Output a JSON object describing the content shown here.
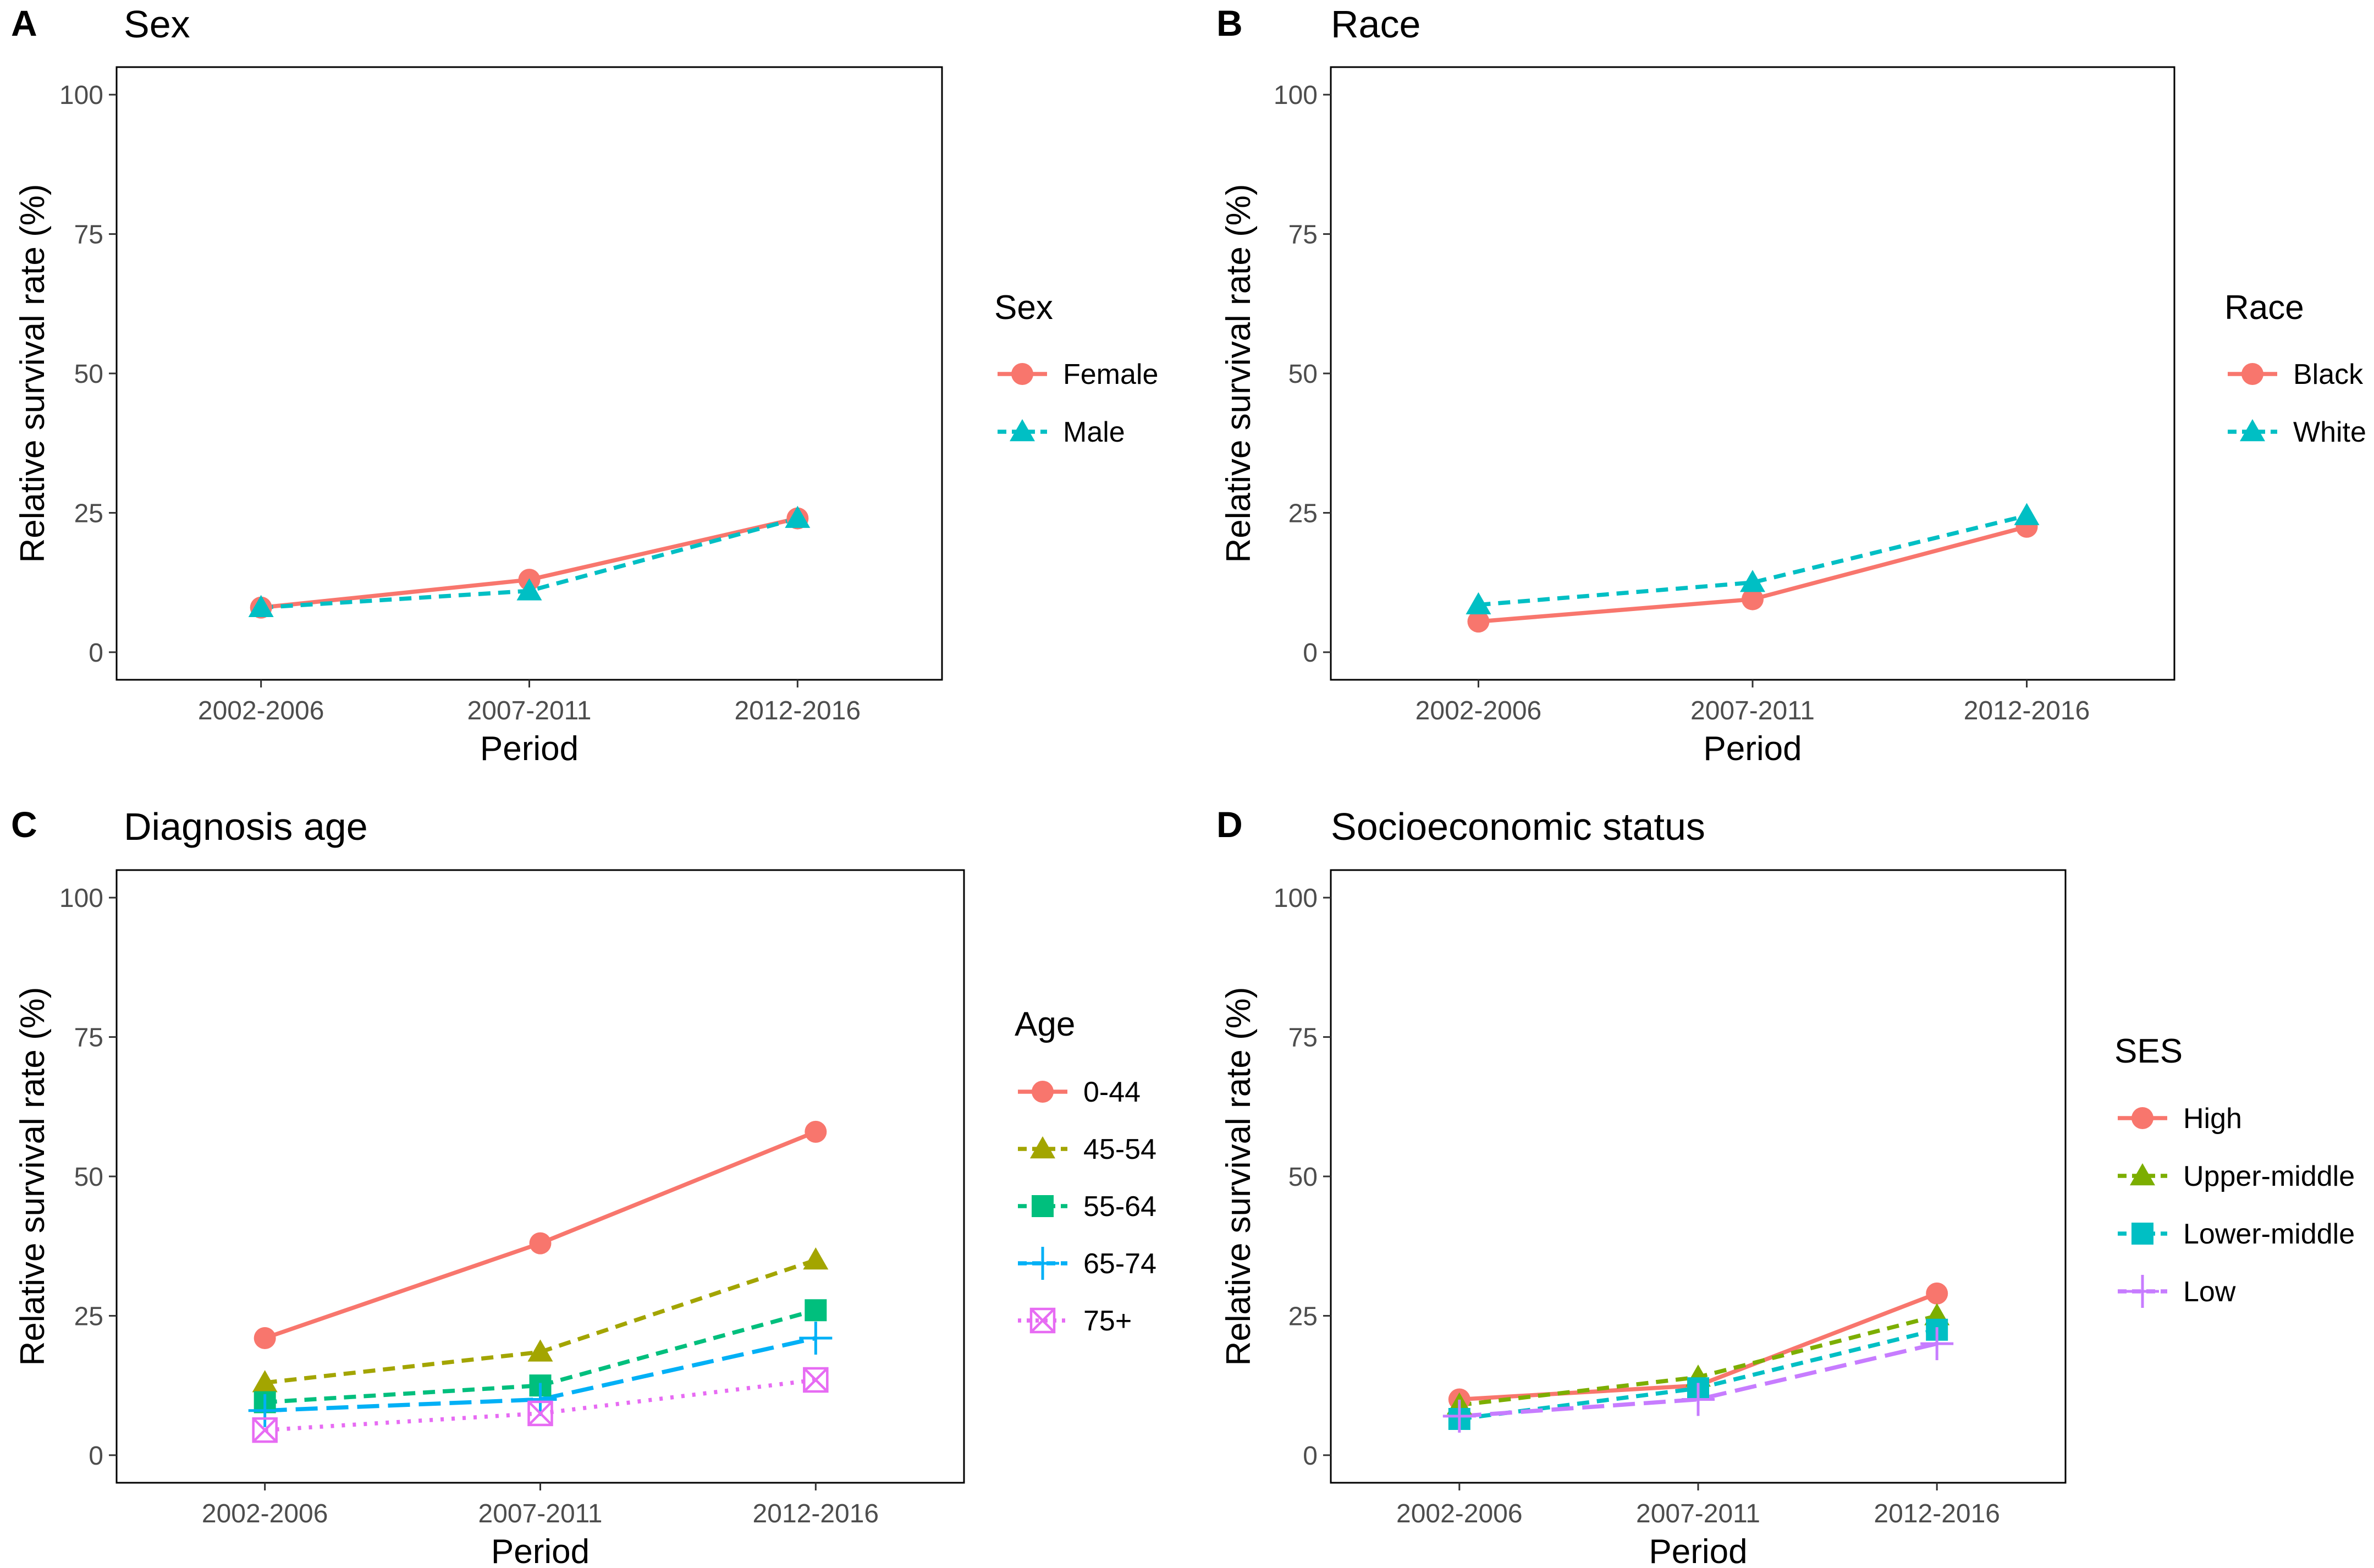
{
  "figure": {
    "colors": {
      "red": "#F8766D",
      "teal": "#00BFC4",
      "olive": "#A3A500",
      "green": "#00BF7D",
      "blue": "#00B0F6",
      "pink": "#E76BF3",
      "purple": "#C77CFF"
    }
  },
  "chart_data": [
    {
      "panel_label": "A",
      "type": "line",
      "title": "Sex",
      "xlabel": "Period",
      "ylabel": "Relative survival rate (%)",
      "categories": [
        "2002-2006",
        "2007-2011",
        "2012-2016"
      ],
      "ylim": [
        0,
        100
      ],
      "yticks": [
        "0",
        "25",
        "50",
        "75",
        "100"
      ],
      "legend": {
        "title": "Sex",
        "position": "right",
        "items": [
          {
            "name": "Female",
            "shape": "circle",
            "line": "solid",
            "color": "#F8766D"
          },
          {
            "name": "Male",
            "shape": "triangle",
            "line": "dashed",
            "color": "#00BFC4"
          }
        ]
      },
      "series": [
        {
          "name": "Female",
          "values": [
            8,
            13,
            24
          ],
          "shape": "circle",
          "line": "solid",
          "color": "#F8766D"
        },
        {
          "name": "Male",
          "values": [
            8,
            11,
            24
          ],
          "shape": "triangle",
          "line": "dashed",
          "color": "#00BFC4"
        }
      ]
    },
    {
      "panel_label": "B",
      "type": "line",
      "title": "Race",
      "xlabel": "Period",
      "ylabel": "Relative survival rate (%)",
      "categories": [
        "2002-2006",
        "2007-2011",
        "2012-2016"
      ],
      "ylim": [
        0,
        100
      ],
      "yticks": [
        "0",
        "25",
        "50",
        "75",
        "100"
      ],
      "legend": {
        "title": "Race",
        "position": "right",
        "items": [
          {
            "name": "Black",
            "shape": "circle",
            "line": "solid",
            "color": "#F8766D"
          },
          {
            "name": "White",
            "shape": "triangle",
            "line": "dashed",
            "color": "#00BFC4"
          }
        ]
      },
      "series": [
        {
          "name": "Black",
          "values": [
            5.5,
            9.5,
            22.5
          ],
          "shape": "circle",
          "line": "solid",
          "color": "#F8766D"
        },
        {
          "name": "White",
          "values": [
            8.5,
            12.5,
            24.5
          ],
          "shape": "triangle",
          "line": "dashed",
          "color": "#00BFC4"
        }
      ]
    },
    {
      "panel_label": "C",
      "type": "line",
      "title": "Diagnosis age",
      "xlabel": "Period",
      "ylabel": "Relative survival rate (%)",
      "categories": [
        "2002-2006",
        "2007-2011",
        "2012-2016"
      ],
      "ylim": [
        0,
        100
      ],
      "yticks": [
        "0",
        "25",
        "50",
        "75",
        "100"
      ],
      "legend": {
        "title": "Age",
        "position": "right",
        "items": [
          {
            "name": "0-44",
            "shape": "circle",
            "line": "solid",
            "color": "#F8766D"
          },
          {
            "name": "45-54",
            "shape": "triangle",
            "line": "dashed",
            "color": "#A3A500"
          },
          {
            "name": "55-64",
            "shape": "square",
            "line": "dashed",
            "color": "#00BF7D"
          },
          {
            "name": "65-74",
            "shape": "plus",
            "line": "longdash",
            "color": "#00B0F6"
          },
          {
            "name": "75+",
            "shape": "boxx",
            "line": "dotted",
            "color": "#E76BF3"
          }
        ]
      },
      "series": [
        {
          "name": "0-44",
          "values": [
            21,
            38,
            58
          ],
          "shape": "circle",
          "line": "solid",
          "color": "#F8766D"
        },
        {
          "name": "45-54",
          "values": [
            13,
            18.5,
            35
          ],
          "shape": "triangle",
          "line": "dashed",
          "color": "#A3A500"
        },
        {
          "name": "55-64",
          "values": [
            9.5,
            12.5,
            26
          ],
          "shape": "square",
          "line": "dashed",
          "color": "#00BF7D"
        },
        {
          "name": "65-74",
          "values": [
            8,
            10,
            21
          ],
          "shape": "plus",
          "line": "longdash",
          "color": "#00B0F6"
        },
        {
          "name": "75+",
          "values": [
            4.5,
            7.5,
            13.5
          ],
          "shape": "boxx",
          "line": "dotted",
          "color": "#E76BF3"
        }
      ]
    },
    {
      "panel_label": "D",
      "type": "line",
      "title": "Socioeconomic status",
      "xlabel": "Period",
      "ylabel": "Relative survival rate (%)",
      "categories": [
        "2002-2006",
        "2007-2011",
        "2012-2016"
      ],
      "ylim": [
        0,
        100
      ],
      "yticks": [
        "0",
        "25",
        "50",
        "75",
        "100"
      ],
      "legend": {
        "title": "SES",
        "position": "right",
        "items": [
          {
            "name": "High",
            "shape": "circle",
            "line": "solid",
            "color": "#F8766D"
          },
          {
            "name": "Upper-middle",
            "shape": "triangle",
            "line": "dashed",
            "color": "#7CAE00"
          },
          {
            "name": "Lower-middle",
            "shape": "square",
            "line": "dashed",
            "color": "#00BFC4"
          },
          {
            "name": "Low",
            "shape": "plus",
            "line": "longdash",
            "color": "#C77CFF"
          }
        ]
      },
      "series": [
        {
          "name": "High",
          "values": [
            10,
            12.5,
            29
          ],
          "shape": "circle",
          "line": "solid",
          "color": "#F8766D"
        },
        {
          "name": "Upper-middle",
          "values": [
            9,
            14,
            25
          ],
          "shape": "triangle",
          "line": "dashed",
          "color": "#7CAE00"
        },
        {
          "name": "Lower-middle",
          "values": [
            6.5,
            12,
            22.5
          ],
          "shape": "square",
          "line": "dashed",
          "color": "#00BFC4"
        },
        {
          "name": "Low",
          "values": [
            7,
            10,
            20
          ],
          "shape": "plus",
          "line": "longdash",
          "color": "#C77CFF"
        }
      ]
    }
  ]
}
